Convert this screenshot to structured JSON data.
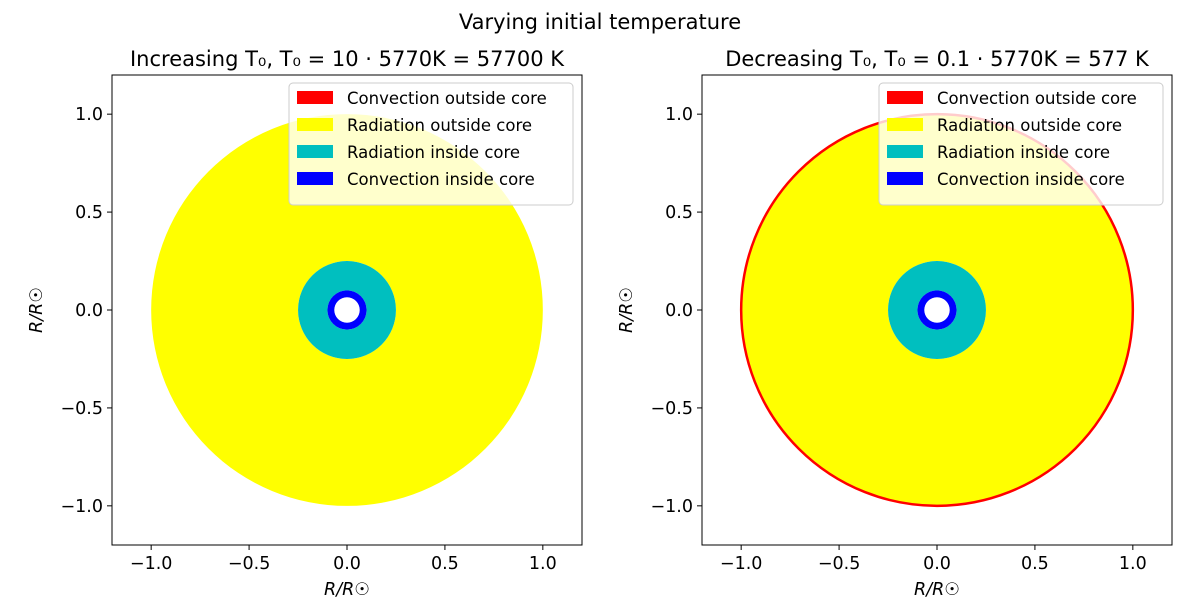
{
  "figure": {
    "suptitle": "Varying initial temperature"
  },
  "legend_entries": [
    {
      "label": "Convection outside core",
      "color": "#ff0000"
    },
    {
      "label": "Radiation outside core",
      "color": "#ffff00"
    },
    {
      "label": "Radiation inside core",
      "color": "#00bfbf"
    },
    {
      "label": "Convection inside core",
      "color": "#0000ff"
    }
  ],
  "chart_data": [
    {
      "type": "region-plot",
      "title": "Increasing T₀, T₀ = 10 · 5770K = 57700 K",
      "xlabel": "R/R☉",
      "ylabel": "R/R☉",
      "xlim": [
        -1.2,
        1.2
      ],
      "ylim": [
        -1.2,
        1.2
      ],
      "xticks": [
        -1.0,
        -0.5,
        0.0,
        0.5,
        1.0
      ],
      "yticks": [
        -1.0,
        -0.5,
        0.0,
        0.5,
        1.0
      ],
      "xtick_labels": [
        "−1.0",
        "−0.5",
        "0.0",
        "0.5",
        "1.0"
      ],
      "ytick_labels": [
        "−1.0",
        "−0.5",
        "0.0",
        "0.5",
        "1.0"
      ],
      "legend_position": "upper-right",
      "regions": [
        {
          "name": "Radiation outside core",
          "color": "#ffff00",
          "r_outer": 1.0,
          "r_inner": 0.25
        },
        {
          "name": "Radiation inside core",
          "color": "#00bfbf",
          "r_outer": 0.25,
          "r_inner": 0.1
        },
        {
          "name": "Convection inside core",
          "color": "#0000ff",
          "r_outer": 0.1,
          "r_inner": 0.065
        }
      ],
      "outer_ring": null
    },
    {
      "type": "region-plot",
      "title": "Decreasing T₀, T₀ = 0.1 · 5770K = 577 K",
      "xlabel": "R/R☉",
      "ylabel": "R/R☉",
      "xlim": [
        -1.2,
        1.2
      ],
      "ylim": [
        -1.2,
        1.2
      ],
      "xticks": [
        -1.0,
        -0.5,
        0.0,
        0.5,
        1.0
      ],
      "yticks": [
        -1.0,
        -0.5,
        0.0,
        0.5,
        1.0
      ],
      "xtick_labels": [
        "−1.0",
        "−0.5",
        "0.0",
        "0.5",
        "1.0"
      ],
      "ytick_labels": [
        "−1.0",
        "−0.5",
        "0.0",
        "0.5",
        "1.0"
      ],
      "legend_position": "upper-right",
      "regions": [
        {
          "name": "Radiation outside core",
          "color": "#ffff00",
          "r_outer": 1.0,
          "r_inner": 0.25
        },
        {
          "name": "Radiation inside core",
          "color": "#00bfbf",
          "r_outer": 0.25,
          "r_inner": 0.1
        },
        {
          "name": "Convection inside core",
          "color": "#0000ff",
          "r_outer": 0.1,
          "r_inner": 0.065
        }
      ],
      "outer_ring": {
        "name": "Convection outside core",
        "color": "#ff0000",
        "r": 1.0
      }
    }
  ]
}
